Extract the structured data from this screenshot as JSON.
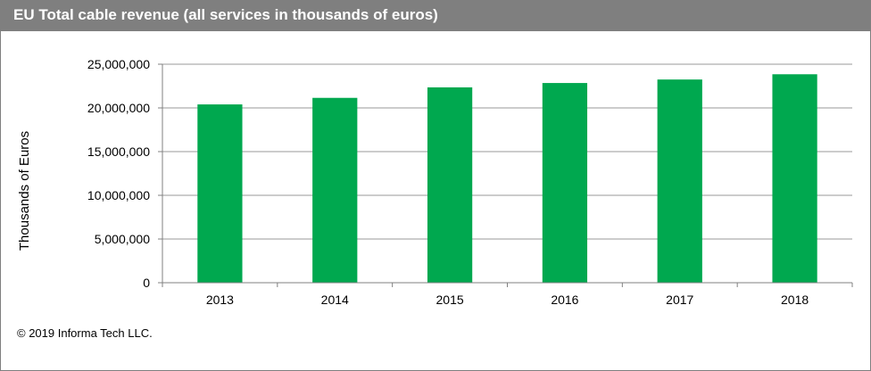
{
  "title": "EU Total cable revenue (all services in thousands of euros)",
  "footer": "© 2019 Informa Tech LLC.",
  "colors": {
    "bar": "#00a84f",
    "header": "#7f7f7f",
    "grid": "#999999"
  },
  "chart_data": {
    "type": "bar",
    "title": "EU Total cable revenue (all services in thousands of euros)",
    "xlabel": "",
    "ylabel": "Thousands of Euros",
    "categories": [
      "2013",
      "2014",
      "2015",
      "2016",
      "2017",
      "2018"
    ],
    "values": [
      20400000,
      21150000,
      22350000,
      22850000,
      23250000,
      23850000
    ],
    "ylim": [
      0,
      25000000
    ],
    "yticks": [
      0,
      5000000,
      10000000,
      15000000,
      20000000,
      25000000
    ],
    "ytick_labels": [
      "0",
      "5,000,000",
      "10,000,000",
      "15,000,000",
      "20,000,000",
      "25,000,000"
    ],
    "grid": true,
    "legend": "none"
  }
}
